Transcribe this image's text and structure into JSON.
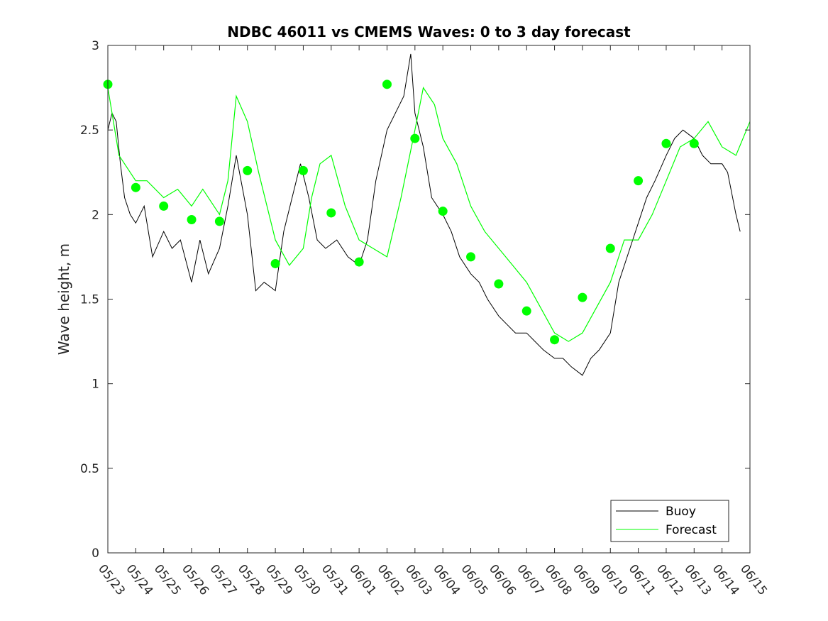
{
  "chart_data": {
    "type": "line",
    "title": "NDBC 46011 vs CMEMS Waves: 0 to 3 day forecast",
    "ylabel": "Wave height, m",
    "xlabel": "",
    "ylim": [
      0,
      3
    ],
    "yticks": [
      0,
      0.5,
      1,
      1.5,
      2,
      2.5,
      3
    ],
    "ytick_labels": [
      "0",
      "0.5",
      "1",
      "1.5",
      "2",
      "2.5",
      "3"
    ],
    "xlim": [
      0,
      23
    ],
    "xtick_labels": [
      "05/23",
      "05/24",
      "05/25",
      "05/26",
      "05/27",
      "05/28",
      "05/29",
      "05/30",
      "05/31",
      "06/01",
      "06/02",
      "06/03",
      "06/04",
      "06/05",
      "06/06",
      "06/07",
      "06/08",
      "06/09",
      "06/10",
      "06/11",
      "06/12",
      "06/13",
      "06/14",
      "06/15"
    ],
    "grid": false,
    "legend": {
      "placement": "bottom-right",
      "entries": [
        "Buoy",
        "Forecast"
      ]
    },
    "colors": {
      "buoy": "#000000",
      "forecast": "#00ff00"
    },
    "buoy": {
      "name": "Buoy",
      "x": [
        0,
        0.15,
        0.3,
        0.45,
        0.6,
        0.8,
        1.0,
        1.3,
        1.6,
        2.0,
        2.3,
        2.6,
        3.0,
        3.3,
        3.6,
        4.0,
        4.3,
        4.6,
        5.0,
        5.3,
        5.6,
        6.0,
        6.3,
        6.6,
        6.9,
        7.2,
        7.5,
        7.8,
        8.2,
        8.6,
        9.0,
        9.3,
        9.6,
        10.0,
        10.3,
        10.6,
        10.85,
        11.0,
        11.3,
        11.6,
        12.0,
        12.3,
        12.6,
        13.0,
        13.3,
        13.6,
        14.0,
        14.3,
        14.6,
        15.0,
        15.3,
        15.6,
        16.0,
        16.3,
        16.6,
        17.0,
        17.3,
        17.6,
        18.0,
        18.3,
        18.6,
        19.0,
        19.3,
        19.6,
        20.0,
        20.3,
        20.6,
        21.0,
        21.3,
        21.6,
        22.0,
        22.2,
        22.5,
        22.65
      ],
      "y": [
        2.5,
        2.6,
        2.55,
        2.3,
        2.1,
        2.0,
        1.95,
        2.05,
        1.75,
        1.9,
        1.8,
        1.85,
        1.6,
        1.85,
        1.65,
        1.8,
        2.05,
        2.35,
        2.0,
        1.55,
        1.6,
        1.55,
        1.9,
        2.1,
        2.3,
        2.1,
        1.85,
        1.8,
        1.85,
        1.75,
        1.7,
        1.85,
        2.2,
        2.5,
        2.6,
        2.7,
        2.95,
        2.6,
        2.4,
        2.1,
        2.0,
        1.9,
        1.75,
        1.65,
        1.6,
        1.5,
        1.4,
        1.35,
        1.3,
        1.3,
        1.25,
        1.2,
        1.15,
        1.15,
        1.1,
        1.05,
        1.15,
        1.2,
        1.3,
        1.6,
        1.75,
        1.95,
        2.1,
        2.2,
        2.35,
        2.45,
        2.5,
        2.45,
        2.35,
        2.3,
        2.3,
        2.25,
        2.0,
        1.9
      ]
    },
    "forecast": {
      "name": "Forecast",
      "x": [
        0,
        0.4,
        1.0,
        1.4,
        2.0,
        2.5,
        3.0,
        3.4,
        4.0,
        4.3,
        4.6,
        5.0,
        5.4,
        6.0,
        6.5,
        7.0,
        7.3,
        7.6,
        8.0,
        8.5,
        9.0,
        9.5,
        10.0,
        10.5,
        11.0,
        11.3,
        11.7,
        12.0,
        12.5,
        13.0,
        13.5,
        14.0,
        14.5,
        15.0,
        15.5,
        16.0,
        16.5,
        17.0,
        17.5,
        18.0,
        18.5,
        19.0,
        19.5,
        20.0,
        20.5,
        21.0,
        21.5,
        22.0,
        22.5,
        23.0
      ],
      "y": [
        2.75,
        2.35,
        2.2,
        2.2,
        2.1,
        2.15,
        2.05,
        2.15,
        2.0,
        2.2,
        2.7,
        2.55,
        2.25,
        1.85,
        1.7,
        1.8,
        2.1,
        2.3,
        2.35,
        2.05,
        1.85,
        1.8,
        1.75,
        2.1,
        2.5,
        2.75,
        2.65,
        2.45,
        2.3,
        2.05,
        1.9,
        1.8,
        1.7,
        1.6,
        1.45,
        1.3,
        1.25,
        1.3,
        1.45,
        1.6,
        1.85,
        1.85,
        2.0,
        2.2,
        2.4,
        2.45,
        2.55,
        2.4,
        2.35,
        2.55
      ]
    },
    "forecast_markers": {
      "name": "Forecast",
      "x": [
        0,
        1,
        2,
        3,
        4,
        5,
        6,
        7,
        8,
        9,
        10,
        11,
        12,
        13,
        14,
        15,
        16,
        17,
        18,
        19,
        20,
        21
      ],
      "y": [
        2.77,
        2.16,
        2.05,
        1.97,
        1.96,
        2.26,
        1.71,
        2.26,
        2.01,
        1.72,
        2.77,
        2.45,
        2.02,
        1.75,
        1.59,
        1.43,
        1.26,
        1.51,
        1.8,
        2.2,
        2.42,
        2.42
      ]
    }
  }
}
